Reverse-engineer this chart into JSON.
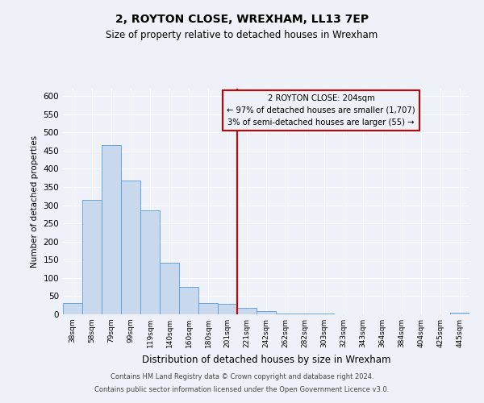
{
  "title": "2, ROYTON CLOSE, WREXHAM, LL13 7EP",
  "subtitle": "Size of property relative to detached houses in Wrexham",
  "xlabel": "Distribution of detached houses by size in Wrexham",
  "ylabel": "Number of detached properties",
  "bar_labels": [
    "38sqm",
    "58sqm",
    "79sqm",
    "99sqm",
    "119sqm",
    "140sqm",
    "160sqm",
    "180sqm",
    "201sqm",
    "221sqm",
    "242sqm",
    "262sqm",
    "282sqm",
    "303sqm",
    "323sqm",
    "343sqm",
    "364sqm",
    "384sqm",
    "404sqm",
    "425sqm",
    "445sqm"
  ],
  "bar_values": [
    32,
    315,
    465,
    368,
    285,
    142,
    76,
    32,
    28,
    18,
    8,
    3,
    2,
    2,
    1,
    1,
    1,
    0,
    0,
    0,
    5
  ],
  "bar_color": "#c8d9ed",
  "bar_edge_color": "#5b9bd5",
  "vline_pos": 8.5,
  "vline_color": "#cc0000",
  "ylim": [
    0,
    620
  ],
  "yticks": [
    0,
    50,
    100,
    150,
    200,
    250,
    300,
    350,
    400,
    450,
    500,
    550,
    600
  ],
  "annotation_title": "2 ROYTON CLOSE: 204sqm",
  "annotation_line1": "← 97% of detached houses are smaller (1,707)",
  "annotation_line2": "3% of semi-detached houses are larger (55) →",
  "annotation_box_color": "#cc0000",
  "footer_line1": "Contains HM Land Registry data © Crown copyright and database right 2024.",
  "footer_line2": "Contains public sector information licensed under the Open Government Licence v3.0.",
  "bg_color": "#eef2f8"
}
